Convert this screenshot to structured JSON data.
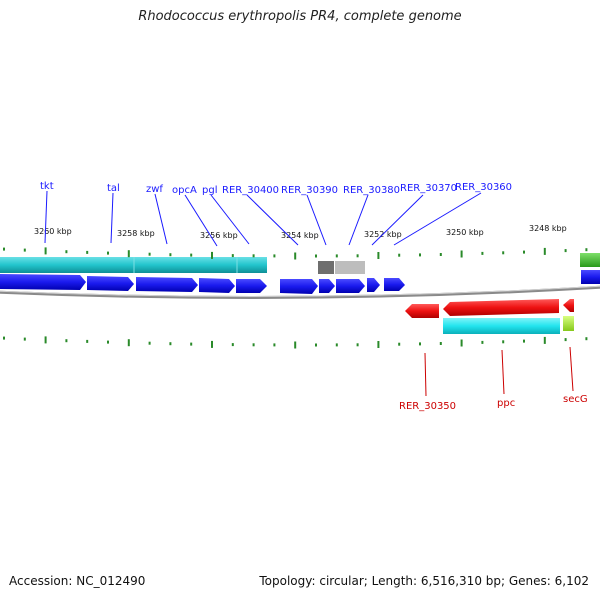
{
  "title": "Rhodococcus erythropolis PR4, complete genome",
  "footer": {
    "accession": "Accession: NC_012490",
    "summary": "Topology: circular; Length: 6,516,310 bp; Genes: 6,102"
  },
  "colors": {
    "forward_gene": "#1a1aee",
    "reverse_gene": "#ee1111",
    "forward_feature": "#22c4cc",
    "reverse_feature": "#22e4ee",
    "label_forward": "#1a1aff",
    "label_reverse": "#cc0000",
    "tick": "#2a8a2a",
    "backbone": "#8a8a8a"
  },
  "scale_labels": [
    "3260 kbp",
    "3258 kbp",
    "3256 kbp",
    "3254 kbp",
    "3252 kbp",
    "3250 kbp",
    "3248 kbp"
  ],
  "forward_labels": [
    "tkt",
    "tal",
    "zwf",
    "opcA",
    "pgl",
    "RER_30400",
    "RER_30390",
    "RER_30380",
    "RER_30370",
    "RER_30360"
  ],
  "reverse_labels": [
    "RER_30350",
    "ppc",
    "secG"
  ]
}
